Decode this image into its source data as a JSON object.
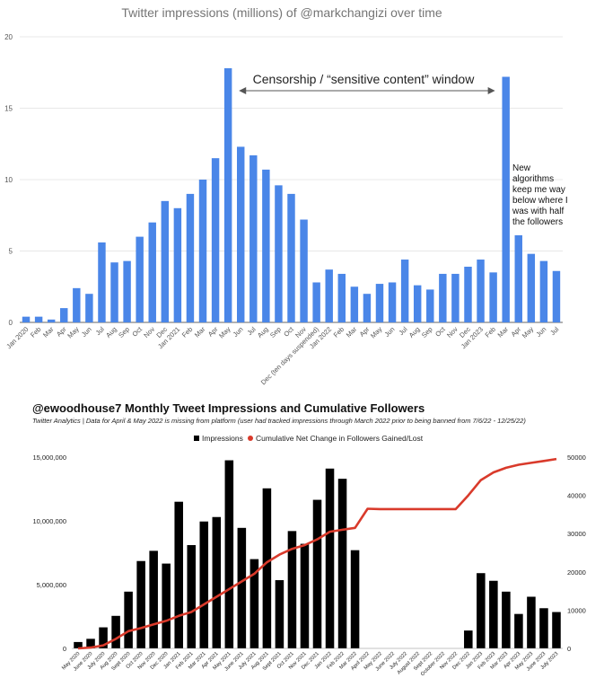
{
  "chart_data": [
    {
      "type": "bar",
      "title": "Twitter impressions (millions) of @markchangizi over time",
      "ylim": [
        0,
        20
      ],
      "yticks": [
        0,
        5,
        10,
        15,
        20
      ],
      "grid": true,
      "bar_color": "#4a86e8",
      "categories": [
        "Jan 2020",
        "Feb",
        "Mar",
        "Apr",
        "May",
        "Jun",
        "Jul",
        "Aug",
        "Sep",
        "Oct",
        "Nov",
        "Dec",
        "Jan 2021",
        "Feb",
        "Mar",
        "Apr",
        "May",
        "Jun",
        "Jul",
        "Aug",
        "Sep",
        "Oct",
        "Nov",
        "Dec (ten days suspended)",
        "Jan 2022",
        "Feb",
        "Mar",
        "Apr",
        "May",
        "Jun",
        "Jul",
        "Aug",
        "Sep",
        "Oct",
        "Nov",
        "Dec",
        "Jan 2023",
        "Feb",
        "Mar",
        "Apr",
        "May",
        "Jun",
        "Jul"
      ],
      "values": [
        0.4,
        0.4,
        0.2,
        1.0,
        2.4,
        2.0,
        5.6,
        4.2,
        4.3,
        6.0,
        7.0,
        8.5,
        8.0,
        9.0,
        10.0,
        11.5,
        17.8,
        12.3,
        11.7,
        10.7,
        9.6,
        9.0,
        7.2,
        2.8,
        3.7,
        3.4,
        2.5,
        2.0,
        2.7,
        2.8,
        4.4,
        2.6,
        2.3,
        3.4,
        3.4,
        3.9,
        4.4,
        3.5,
        17.2,
        6.1,
        4.8,
        4.3,
        3.6
      ],
      "annotations": [
        {
          "text": "Censorship / “sensitive content” window",
          "from": "Jun",
          "to": "Feb"
        },
        {
          "text_lines": [
            "New",
            "algorithms",
            "keep me way",
            "below where I",
            "was with half",
            "the followers"
          ]
        }
      ]
    },
    {
      "type": "bar+line",
      "title": "@ewoodhouse7 Monthly Tweet Impressions and Cumulative Followers",
      "subtitle": "Twitter Analytics | Data for April & May 2022 is missing from platform (user had tracked impressions through March 2022 prior to being banned from 7/6/22 - 12/25/22)",
      "legend": [
        "Impressions",
        "Cumulative Net Change in Followers Gained/Lost"
      ],
      "legend_position": "top",
      "bar_color": "#000000",
      "line_color": "#d93a2b",
      "categories": [
        "May 2020",
        "June 2020",
        "July 2020",
        "Aug 2020",
        "Sept 2020",
        "Oct 2020",
        "Nov 2020",
        "Dec 2020",
        "Jan 2021",
        "Feb 2021",
        "Mar 2021",
        "Apr 2021",
        "May 2021",
        "June 2021",
        "July 2021",
        "Aug 2021",
        "Sept 2021",
        "Oct 2021",
        "Nov 2021",
        "Dec 2021",
        "Jan 2022",
        "Feb 2022",
        "Mar 2022",
        "April 2022",
        "May 2022",
        "June 2022",
        "July 2022",
        "August 2022",
        "Sept 2022",
        "October 2022",
        "Nov 2022",
        "Dec 2022",
        "Jan 2023",
        "Feb 2023",
        "Mar 2023",
        "Apr 2023",
        "May 2023",
        "June 2023",
        "July 2023"
      ],
      "ylim_left": [
        0,
        15000000
      ],
      "yticks_left": [
        "0",
        "5,000,000",
        "10,000,000",
        "15,000,000"
      ],
      "ylim_right": [
        0,
        50000
      ],
      "yticks_right": [
        "0",
        "10000",
        "20000",
        "30000",
        "40000",
        "50000"
      ],
      "impressions": [
        500000,
        750000,
        1650000,
        2550000,
        4450000,
        6850000,
        7650000,
        6650000,
        11500000,
        8100000,
        9950000,
        10300000,
        14750000,
        9450000,
        7000000,
        12550000,
        5350000,
        9200000,
        8200000,
        11650000,
        14100000,
        13300000,
        7700000,
        0,
        0,
        0,
        0,
        0,
        0,
        0,
        0,
        1400000,
        5900000,
        5300000,
        4450000,
        2700000,
        4050000,
        3150000,
        2850000
      ],
      "cumulative_followers": [
        0,
        200,
        800,
        2500,
        4500,
        5300,
        6300,
        7200,
        8500,
        9500,
        11500,
        13500,
        15500,
        17500,
        19500,
        22500,
        24500,
        26000,
        27000,
        28500,
        30500,
        31000,
        31500,
        36500,
        36400,
        36400,
        36400,
        36400,
        36400,
        36400,
        36400,
        40000,
        44000,
        46000,
        47200,
        48000,
        48500,
        49000,
        49500
      ]
    }
  ]
}
